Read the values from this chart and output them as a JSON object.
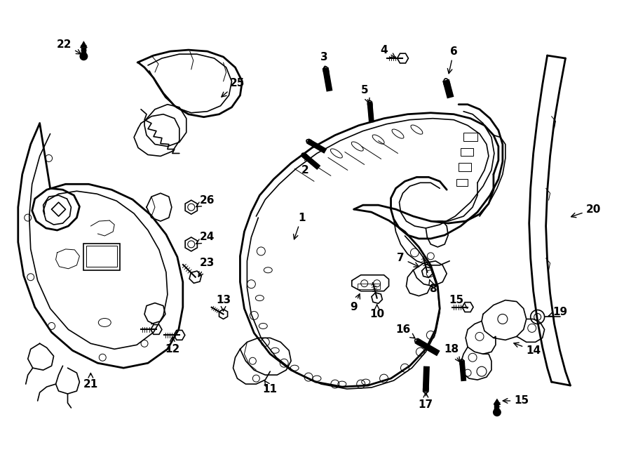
{
  "background_color": "#ffffff",
  "line_color": "#000000",
  "fig_width": 9.0,
  "fig_height": 6.61,
  "dpi": 100,
  "xlim": [
    0,
    900
  ],
  "ylim": [
    0,
    661
  ]
}
